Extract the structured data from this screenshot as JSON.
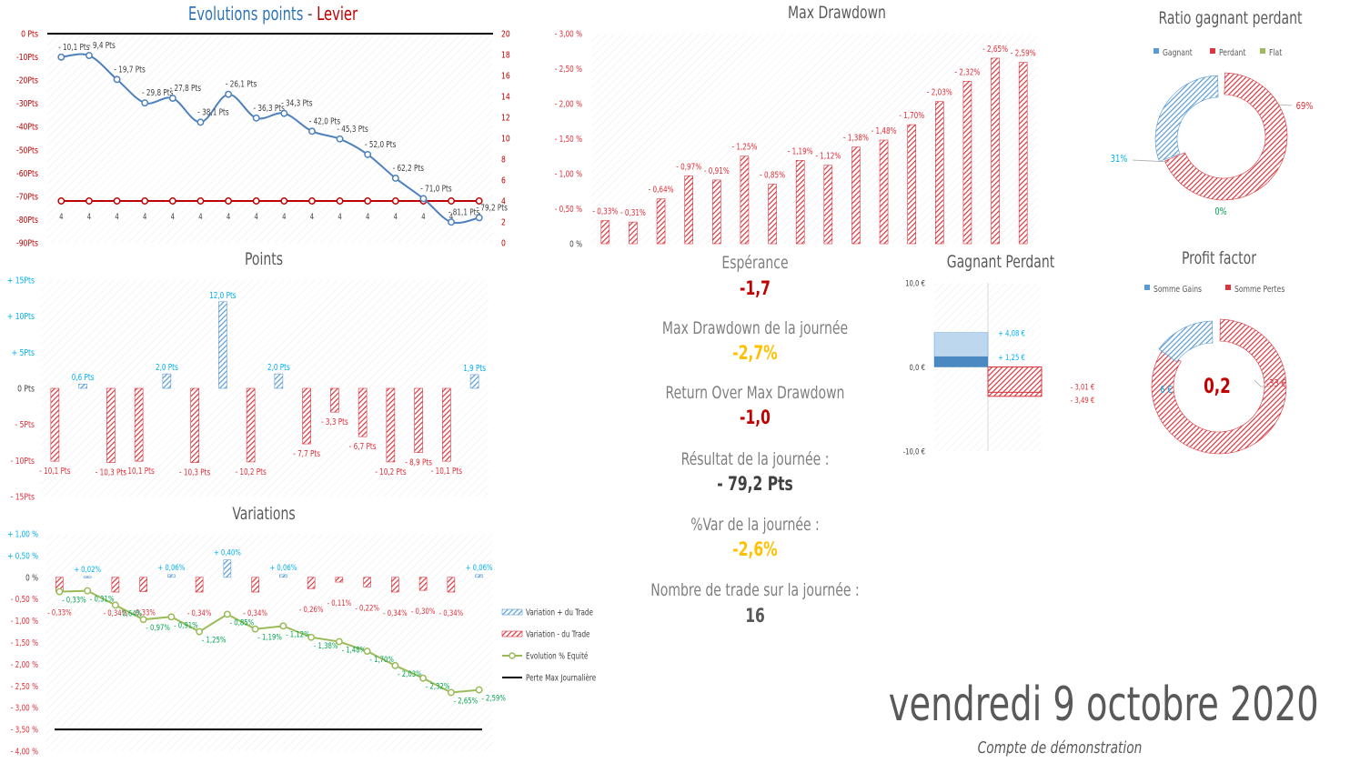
{
  "colors": {
    "blue": "#5b9bd5",
    "red": "#d9363e",
    "line_blue": "#4f81bd",
    "green": "#9bbb59",
    "gold": "#ffc000",
    "darkred": "#c00000",
    "cyan": "#00b0f0",
    "label_red": "#e0303a",
    "label_green": "#00a650"
  },
  "chart_evol": {
    "title_a": "Evolutions points",
    "title_sep": " - ",
    "title_b": "Levier",
    "type": "line",
    "y_ticks": [
      "0 Pts",
      "-10Pts",
      "-20Pts",
      "-30Pts",
      "-40Pts",
      "-50Pts",
      "-60Pts",
      "-70Pts",
      "-80Pts",
      "-90Pts"
    ],
    "y2_ticks": [
      "20",
      "18",
      "16",
      "14",
      "12",
      "10",
      "8",
      "6",
      "4",
      "2",
      "0"
    ],
    "ylim": [
      -90,
      0
    ],
    "y2lim": [
      0,
      20
    ],
    "reference_line": 0,
    "points": [
      -10.1,
      -9.4,
      -19.7,
      -29.8,
      -27.8,
      -38.1,
      -26.1,
      -36.3,
      -34.3,
      -42.0,
      -45.3,
      -52.0,
      -62.2,
      -71.0,
      -81.1,
      -79.2
    ],
    "point_labels": [
      "- 10,1 Pts",
      "- 9,4 Pts",
      "- 19,7 Pts",
      "- 29,8 Pts",
      "- 27,8 Pts",
      "- 38,1 Pts",
      "- 26,1 Pts",
      "- 36,3 Pts",
      "- 34,3 Pts",
      "- 42,0 Pts",
      "- 45,3 Pts",
      "- 52,0 Pts",
      "- 62,2 Pts",
      "- 71,0 Pts",
      "- 81,1 Pts",
      "- 79,2 Pts"
    ],
    "levier": [
      4,
      4,
      4,
      4,
      4,
      4,
      4,
      4,
      4,
      4,
      4,
      4,
      4,
      4,
      4,
      4
    ],
    "levier_labels": [
      "4",
      "4",
      "4",
      "4",
      "4",
      "4",
      "4",
      "4",
      "4",
      "4",
      "4",
      "4",
      "4",
      "4",
      "4",
      "4"
    ]
  },
  "chart_points": {
    "title": "Points",
    "type": "bar",
    "y_ticks": [
      "+ 15Pts",
      "+ 10Pts",
      "+ 5Pts",
      "0 Pts",
      "- 5Pts",
      "- 10Pts",
      "- 15Pts"
    ],
    "ylim": [
      -15,
      15
    ],
    "values": [
      -10.1,
      0.6,
      -10.3,
      -10.1,
      2.0,
      -10.3,
      12.0,
      -10.2,
      2.0,
      -7.7,
      -3.3,
      -6.7,
      -10.2,
      -8.9,
      -10.1,
      1.9
    ],
    "labels": [
      "- 10,1 Pts",
      "0,6 Pts",
      "- 10,3 Pts",
      "- 10,1 Pts",
      "2,0 Pts",
      "- 10,3 Pts",
      "12,0 Pts",
      "- 10,2 Pts",
      "2,0 Pts",
      "- 7,7 Pts",
      "- 3,3 Pts",
      "- 6,7 Pts",
      "- 10,2 Pts",
      "- 8,9 Pts",
      "- 10,1 Pts",
      "1,9 Pts"
    ]
  },
  "chart_variations": {
    "title": "Variations",
    "type": "bar",
    "y_ticks": [
      "+ 1,00 %",
      "+ 0,50 %",
      "0 %",
      "- 0,50 %",
      "- 1,00 %",
      "- 1,50 %",
      "- 2,00 %",
      "- 2,50 %",
      "- 3,00 %",
      "- 3,50 %",
      "- 4,00 %"
    ],
    "ylim": [
      -4.0,
      1.0
    ],
    "max_loss_line": -3.5,
    "bars": [
      -0.33,
      0.02,
      -0.34,
      -0.33,
      0.06,
      -0.34,
      0.4,
      -0.34,
      0.06,
      -0.26,
      -0.11,
      -0.22,
      -0.34,
      -0.3,
      -0.34,
      0.06
    ],
    "bar_labels": [
      "- 0,33%",
      "+ 0,02%",
      "- 0,34%",
      "- 0,33%",
      "+ 0,06%",
      "- 0,34%",
      "+ 0,40%",
      "- 0,34%",
      "+ 0,06%",
      "- 0,26%",
      "- 0,11%",
      "- 0,22%",
      "- 0,34%",
      "- 0,30%",
      "- 0,34%",
      "+ 0,06%"
    ],
    "equity": [
      -0.33,
      -0.31,
      -0.64,
      -0.97,
      -0.91,
      -1.25,
      -0.85,
      -1.19,
      -1.12,
      -1.38,
      -1.48,
      -1.7,
      -2.03,
      -2.32,
      -2.65,
      -2.59
    ],
    "equity_labels": [
      "- 0,33%",
      "- 0,31%",
      "- 0,64%",
      "- 0,97%",
      "- 0,91%",
      "- 1,25%",
      "- 0,85%",
      "- 1,19%",
      "- 1,12%",
      "- 1,38%",
      "- 1,48%",
      "- 1,70%",
      "- 2,03%",
      "- 2,32%",
      "- 2,65%",
      "- 2,59%"
    ],
    "legend": [
      "Variation + du Trade",
      "Variation - du Trade",
      "Evolution % Equité",
      "Perte Max Journalière"
    ]
  },
  "chart_drawdown": {
    "title": "Max Drawdown",
    "type": "bar",
    "y_ticks": [
      "- 3,00 %",
      "- 2,50 %",
      "- 2,00 %",
      "- 1,50 %",
      "- 1,00 %",
      "- 0,50 %",
      "0 %"
    ],
    "ylim": [
      0,
      3.0
    ],
    "values": [
      0.33,
      0.31,
      0.64,
      0.97,
      0.91,
      1.25,
      0.85,
      1.19,
      1.12,
      1.38,
      1.48,
      1.7,
      2.03,
      2.32,
      2.65,
      2.59
    ],
    "labels": [
      "- 0,33%",
      "- 0,31%",
      "- 0,64%",
      "- 0,97%",
      "- 0,91%",
      "- 1,25%",
      "- 0,85%",
      "- 1,19%",
      "- 1,12%",
      "- 1,38%",
      "- 1,48%",
      "- 1,70%",
      "- 2,03%",
      "- 2,32%",
      "- 2,65%",
      "- 2,59%"
    ]
  },
  "stats": {
    "esperance_label": "Espérance",
    "esperance_value": "-1,7",
    "maxdd_label": "Max Drawdown de la journée",
    "maxdd_value": "-2,7%",
    "romad_label": "Return Over Max Drawdown",
    "romad_value": "-1,0",
    "result_label": "Résultat de la journée :",
    "result_value": "- 79,2 Pts",
    "pctvar_label": "%Var de la journée :",
    "pctvar_value": "-2,6%",
    "ntrades_label": "Nombre de trade sur la journée :",
    "ntrades_value": "16"
  },
  "chart_gagnant_perdant": {
    "title": "Gagnant Perdant",
    "type": "bar",
    "y_ticks": [
      "10,0 €",
      "0,0 €",
      "-10,0 €"
    ],
    "ylim": [
      -10,
      10
    ],
    "gain_total": 4.08,
    "gain_avg": 1.25,
    "loss_total": -3.49,
    "loss_avg": -3.01,
    "labels": [
      "+ 4,08 €",
      "+ 1,25 €",
      "- 3,01 €",
      "- 3,49 €"
    ]
  },
  "chart_ratio": {
    "title": "Ratio gagnant perdant",
    "type": "pie",
    "legend": [
      "Gagnant",
      "Perdant",
      "Flat"
    ],
    "values": [
      31,
      69,
      0
    ],
    "labels": [
      "31%",
      "69%",
      "0%"
    ]
  },
  "chart_profit": {
    "title": "Profit factor",
    "type": "pie",
    "legend": [
      "Somme Gains",
      "Somme Pertes"
    ],
    "values": [
      6,
      33
    ],
    "labels": [
      "6 €",
      "-33 €"
    ],
    "center": "0,2"
  },
  "footer": {
    "date": "vendredi 9 octobre 2020",
    "account": "Compte de démonstration"
  }
}
